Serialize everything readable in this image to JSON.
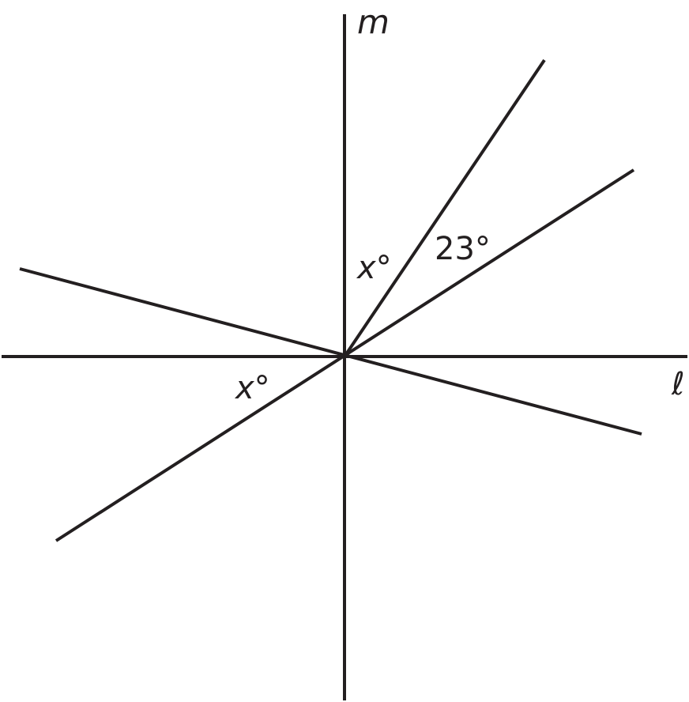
{
  "labels": {
    "line_m": "m",
    "line_l": "ℓ",
    "angle_upper_x": "x°",
    "angle_23": "23°",
    "angle_lower_x": "x°"
  },
  "colors": {
    "stroke": "#231f20",
    "background": "#ffffff"
  }
}
